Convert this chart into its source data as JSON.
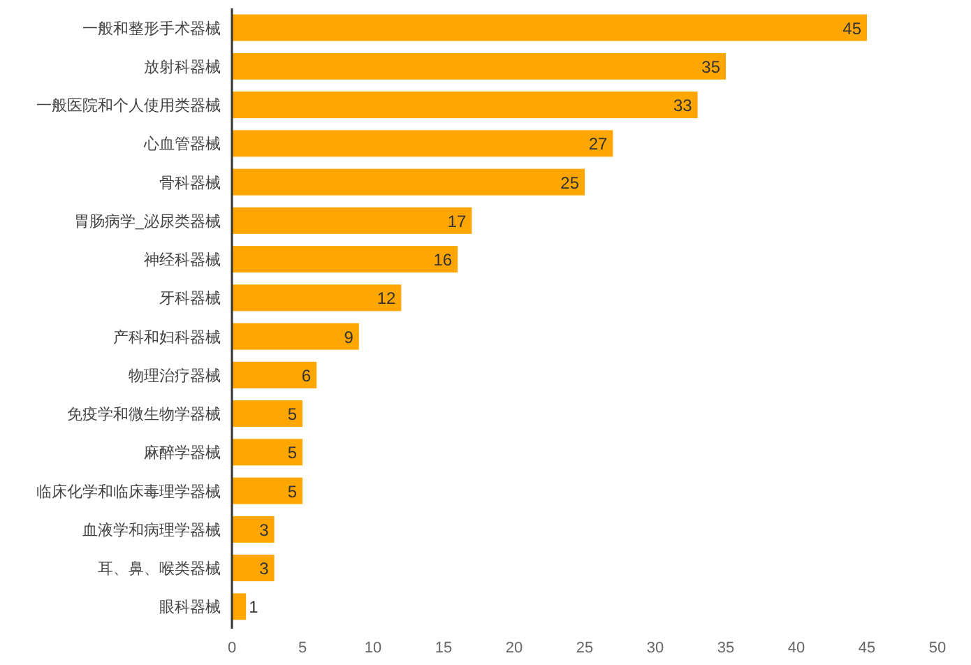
{
  "chart_data": {
    "type": "bar",
    "orientation": "horizontal",
    "categories": [
      "一般和整形手术器械",
      "放射科器械",
      "一般医院和个人使用类器械",
      "心血管器械",
      "骨科器械",
      "胃肠病学_泌尿类器械",
      "神经科器械",
      "牙科器械",
      "产科和妇科器械",
      "物理治疗器械",
      "免疫学和微生物学器械",
      "麻醉学器械",
      "临床化学和临床毒理学器械",
      "血液学和病理学器械",
      "耳、鼻、喉类器械",
      "眼科器械"
    ],
    "values": [
      45,
      35,
      33,
      27,
      25,
      17,
      16,
      12,
      9,
      6,
      5,
      5,
      5,
      3,
      3,
      1
    ],
    "color": "#ffa600",
    "xlim": [
      0,
      50
    ],
    "xticks": [
      0,
      5,
      10,
      15,
      20,
      25,
      30,
      35,
      40,
      45,
      50
    ],
    "data_labels": true,
    "grid": false
  }
}
